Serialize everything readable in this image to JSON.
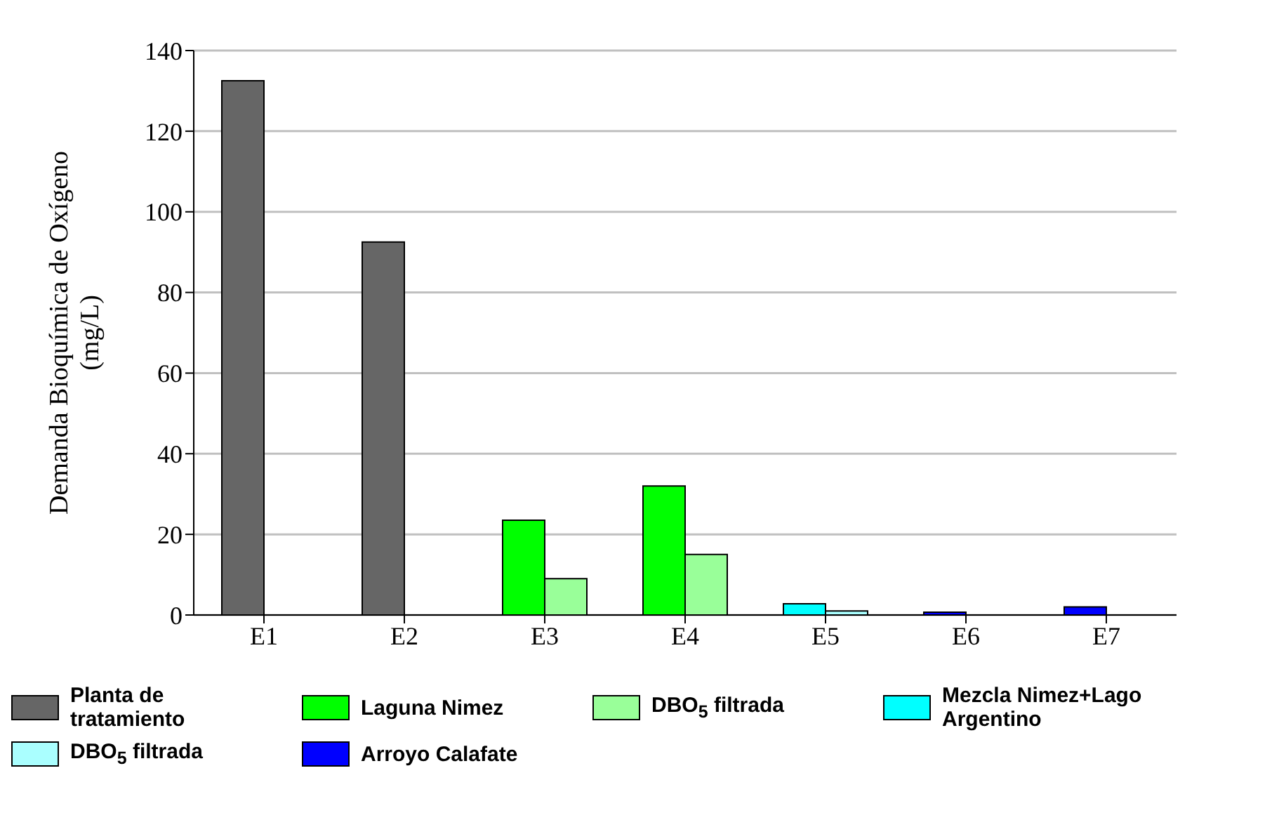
{
  "chart_data": {
    "type": "bar",
    "ylabel": "Demanda Bioquímica de Oxígeno (mg/L)",
    "categories": [
      "E1",
      "E2",
      "E3",
      "E4",
      "E5",
      "E6",
      "E7"
    ],
    "series": [
      {
        "name": "Planta de tratamiento",
        "color": "#666666",
        "values": [
          132.5,
          92.5,
          null,
          null,
          null,
          null,
          null
        ]
      },
      {
        "name": "Laguna Nimez",
        "color": "#00ff00",
        "values": [
          null,
          null,
          23.5,
          32,
          null,
          null,
          null
        ]
      },
      {
        "name": "DBO$_{5}$ filtrada",
        "color": "#99ff99",
        "values": [
          null,
          null,
          9,
          15,
          null,
          null,
          null
        ]
      },
      {
        "name": "Mezcla Nimez+Lago Argentino",
        "color": "#00ffff",
        "values": [
          null,
          null,
          null,
          null,
          2.8,
          null,
          null
        ]
      },
      {
        "name": "DBO$_{5}$ filtrada",
        "color": "#aaffff",
        "values": [
          null,
          null,
          null,
          null,
          1,
          null,
          null
        ]
      },
      {
        "name": "Arroyo Calafate",
        "color": "#0000ff",
        "values": [
          null,
          null,
          null,
          null,
          null,
          0.7,
          2
        ]
      }
    ],
    "ylim": [
      0,
      140
    ],
    "yticks": [
      0,
      20,
      40,
      60,
      80,
      100,
      120,
      140
    ],
    "grid": "y",
    "legend": "bottom"
  }
}
